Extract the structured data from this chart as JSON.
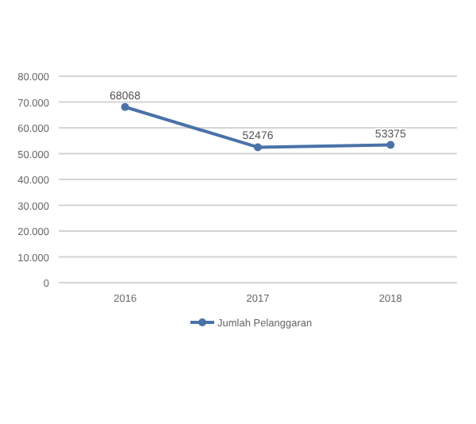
{
  "chart_data": {
    "type": "line",
    "categories": [
      "2016",
      "2017",
      "2018"
    ],
    "series": [
      {
        "name": "Jumlah Pelanggaran",
        "color": "#4a72a8",
        "values": [
          68068,
          52476,
          53375
        ]
      }
    ],
    "ylim": [
      0,
      80000
    ],
    "yticks": [
      {
        "value": 0,
        "label": "0"
      },
      {
        "value": 10000,
        "label": "10.000"
      },
      {
        "value": 20000,
        "label": "20.000"
      },
      {
        "value": 30000,
        "label": "30.000"
      },
      {
        "value": 40000,
        "label": "40.000"
      },
      {
        "value": 50000,
        "label": "50.000"
      },
      {
        "value": 60000,
        "label": "60.000"
      },
      {
        "value": 70000,
        "label": "70.000"
      },
      {
        "value": 80000,
        "label": "80.000"
      }
    ],
    "grid": "y",
    "legend": "bottom",
    "marker": "circle",
    "data_labels": true
  }
}
